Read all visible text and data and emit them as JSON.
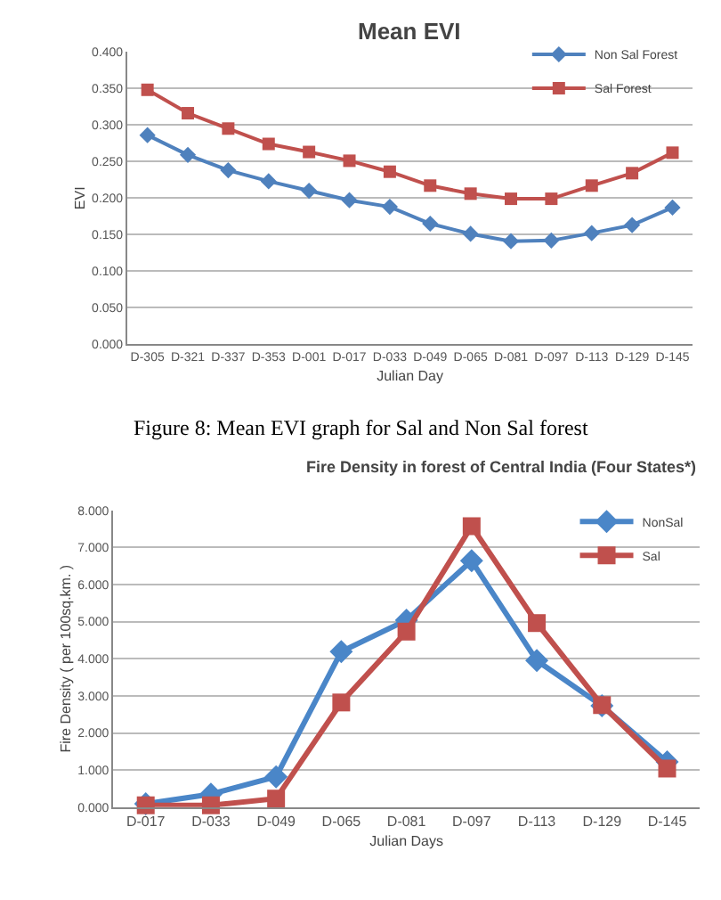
{
  "chart_data": [
    {
      "type": "line",
      "title": "Mean EVI",
      "xlabel": "Julian Day",
      "ylabel": "EVI",
      "categories": [
        "D-305",
        "D-321",
        "D-337",
        "D-353",
        "D-001",
        "D-017",
        "D-033",
        "D-049",
        "D-065",
        "D-081",
        "D-097",
        "D-113",
        "D-129",
        "D-145"
      ],
      "series": [
        {
          "name": "Non Sal Forest",
          "color": "#4f81bd",
          "marker": "diamond",
          "values": [
            0.286,
            0.259,
            0.238,
            0.223,
            0.21,
            0.197,
            0.188,
            0.165,
            0.151,
            0.141,
            0.142,
            0.152,
            0.163,
            0.187
          ]
        },
        {
          "name": "Sal Forest",
          "color": "#c0504d",
          "marker": "square",
          "values": [
            0.348,
            0.316,
            0.295,
            0.274,
            0.263,
            0.251,
            0.236,
            0.217,
            0.206,
            0.199,
            0.199,
            0.217,
            0.234,
            0.262
          ]
        }
      ],
      "ylim": [
        0,
        0.4
      ],
      "yticks": [
        {
          "value": 0,
          "label": "0.000"
        },
        {
          "value": 0.05,
          "label": "0.050"
        },
        {
          "value": 0.1,
          "label": "0.100"
        },
        {
          "value": 0.15,
          "label": "0.150"
        },
        {
          "value": 0.2,
          "label": "0.200"
        },
        {
          "value": 0.25,
          "label": "0.250"
        },
        {
          "value": 0.3,
          "label": "0.300"
        },
        {
          "value": 0.35,
          "label": "0.350"
        },
        {
          "value": 0.4,
          "label": "0.400"
        }
      ],
      "grid": "y",
      "legend": "top right",
      "annotations": [
        "Figure 8: Mean EVI graph for Sal and Non Sal forest"
      ]
    },
    {
      "type": "line",
      "title": "Fire Density in forest of Central India (Four States*)",
      "xlabel": "Julian Days",
      "ylabel": "Fire Density ( per 100sq.km. )",
      "categories": [
        "D-017",
        "D-033",
        "D-049",
        "D-065",
        "D-081",
        "D-097",
        "D-113",
        "D-129",
        "D-145"
      ],
      "series": [
        {
          "name": "NonSal",
          "color": "#4a86c8",
          "marker": "diamond",
          "values": [
            0.09,
            0.35,
            0.82,
            4.19,
            5.04,
            6.64,
            3.95,
            2.73,
            1.22
          ]
        },
        {
          "name": "Sal",
          "color": "#c0504d",
          "marker": "square",
          "values": [
            0.05,
            0.05,
            0.23,
            2.82,
            4.73,
            7.57,
            4.96,
            2.75,
            1.04
          ]
        }
      ],
      "ylim": [
        0,
        8
      ],
      "yticks": [
        {
          "value": 0,
          "label": "0.000"
        },
        {
          "value": 1,
          "label": "1.000"
        },
        {
          "value": 2,
          "label": "2.000"
        },
        {
          "value": 3,
          "label": "3.000"
        },
        {
          "value": 4,
          "label": "4.000"
        },
        {
          "value": 5,
          "label": "5.000"
        },
        {
          "value": 6,
          "label": "6.000"
        },
        {
          "value": 7,
          "label": "7.000"
        },
        {
          "value": 8,
          "label": "8.000"
        }
      ],
      "grid": "y",
      "legend": "top right"
    }
  ]
}
